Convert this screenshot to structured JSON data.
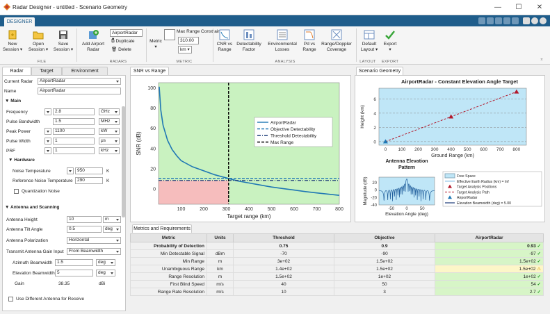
{
  "window": {
    "title": "Radar Designer - untitled - Scenario Geometry",
    "min": "—",
    "max": "☐",
    "close": "✕"
  },
  "tabs": {
    "designer": "DESIGNER"
  },
  "ribbon": {
    "file": {
      "new": "New\nSession ▾",
      "open": "Open\nSession ▾",
      "save": "Save\nSession ▾",
      "label": "FILE"
    },
    "radars": {
      "add": "Add Airport\nRadar",
      "selected": "AirportRadar",
      "duplicate": "Duplicate",
      "delete": "Delete",
      "label": "RADARS"
    },
    "metric": {
      "metric": "Metric\n▾",
      "max_range_label": "Max Range Constraint",
      "max_range_value": "310.00",
      "unit": "km",
      "label": "METRIC"
    },
    "analysis": {
      "cnr": "CNR vs\nRange",
      "detect": "Detectability\nFactor",
      "env": "Environmental\nLosses",
      "pd": "Pd vs\nRange",
      "rd": "Range/Doppler\nCoverage",
      "label": "ANALYSIS"
    },
    "layout": {
      "default": "Default\nLayout ▾",
      "label": "LAYOUT"
    },
    "export": {
      "export": "Export\n▾",
      "label": "EXPORT"
    }
  },
  "left": {
    "tabs": [
      "Radar",
      "Target",
      "Environment"
    ],
    "current_radar_label": "Current Radar",
    "current_radar": "AirportRadar",
    "name_label": "Name",
    "name": "AirportRadar",
    "main_label": "▼ Main",
    "main": [
      {
        "label": "Frequency",
        "value": "2.8",
        "unit": "GHz"
      },
      {
        "label": "Pulse Bandwidth",
        "value": "1.5",
        "unit": "MHz"
      },
      {
        "label": "Peak Power",
        "value": "1100",
        "unit": "kW"
      },
      {
        "label": "Pulse Width",
        "value": "1",
        "unit": "μs"
      },
      {
        "label": "PRF",
        "value": "1",
        "unit": "kHz"
      }
    ],
    "hardware_label": "▼ Hardware",
    "noise_temp_label": "Noise Temperature",
    "noise_temp": "950",
    "noise_temp_unit": "K",
    "ref_noise_label": "Reference Noise Temperature",
    "ref_noise": "290",
    "ref_noise_unit": "K",
    "quant_noise": "Quantization Noise",
    "antenna_label": "▼ Antenna and Scanning",
    "antenna": [
      {
        "label": "Antenna Height",
        "value": "10",
        "unit": "m"
      },
      {
        "label": "Antenna Tilt Angle",
        "value": "0.5",
        "unit": "deg"
      },
      {
        "label": "Antenna Polarization",
        "value": "Horizontal",
        "unit": ""
      },
      {
        "label": "Transmit Antenna Gain Input",
        "value": "From Beamwidth",
        "unit": ""
      },
      {
        "label": "Azimuth Beamwidth",
        "value": "1.5",
        "unit": "deg"
      },
      {
        "label": "Elevation Beamwidth",
        "value": "5",
        "unit": "deg"
      }
    ],
    "gain_label": "Gain",
    "gain": "38.35",
    "gain_unit": "dBi",
    "diff_antenna": "Use Different Antenna for Receive"
  },
  "snr": {
    "tab": "SNR vs Range"
  },
  "geometry_tab": "Scenario Geometry",
  "chart_data": [
    {
      "type": "line",
      "ylabel": "SNR (dB)",
      "xlabel": "Target range (km)",
      "xlim": [
        0,
        800
      ],
      "ylim": [
        -15,
        105
      ],
      "xticks": [
        100,
        200,
        300,
        400,
        500,
        600,
        700,
        800
      ],
      "yticks": [
        0,
        20,
        40,
        60,
        80,
        100
      ],
      "legend_position": "right",
      "series": [
        {
          "name": "AirportRadar",
          "color": "#1f77b4",
          "style": "solid",
          "x": [
            3,
            10,
            20,
            40,
            60,
            80,
            100,
            150,
            200,
            250,
            300,
            350,
            400,
            450,
            500,
            550,
            600,
            650,
            700,
            750,
            800
          ],
          "y": [
            101,
            78,
            63,
            48,
            39,
            33,
            28,
            22,
            18,
            14,
            11,
            8,
            6,
            4,
            2,
            0.5,
            -1,
            -2.5,
            -3.8,
            -5,
            -6.2
          ]
        },
        {
          "name": "Objective Detectability",
          "color": "#1f77b4",
          "style": "dashed",
          "y_const": 10.5
        },
        {
          "name": "Threshold Detectability",
          "color": "#1f3d7a",
          "style": "dashdot",
          "y_const": 8.5
        },
        {
          "name": "Max Range",
          "color": "#000000",
          "style": "dashed",
          "x_const": 310
        }
      ]
    },
    {
      "type": "scatter",
      "title": "AirportRadar - Constant Elevation Angle Target",
      "ylabel": "Height (km)",
      "xlabel": "Ground Range (km)",
      "xlim": [
        -40,
        860
      ],
      "ylim": [
        -0.5,
        7.5
      ],
      "xticks": [
        0,
        100,
        200,
        300,
        400,
        500,
        600,
        700,
        800
      ],
      "yticks": [
        0,
        2,
        4,
        6
      ],
      "series": [
        {
          "name": "AirportRadar",
          "color": "#1f77b4",
          "x": [
            0
          ],
          "y": [
            0
          ]
        },
        {
          "name": "Target Analysis Positions",
          "color": "#b2182b",
          "x": [
            400,
            800
          ],
          "y": [
            3.5,
            7.0
          ]
        },
        {
          "name": "Target Analysis Path",
          "color": "#b2182b",
          "style": "dashed",
          "x": [
            0,
            800
          ],
          "y": [
            0,
            7.0
          ]
        }
      ]
    },
    {
      "type": "line",
      "title": "Antenna Elevation Pattern",
      "ylabel": "Magnitude (dB)",
      "xlabel": "Elevation Angle (deg)",
      "xlim": [
        -90,
        90
      ],
      "ylim": [
        -40,
        35
      ],
      "xticks": [
        -50,
        0,
        50
      ],
      "yticks": [
        -40,
        -20,
        0,
        20
      ],
      "legend": [
        "Free Space",
        "Effective Earth Radius (km) = Inf",
        "Target Analysis Positions",
        "Target Analysis Path",
        "AirportRadar",
        "Elevation Beamwidth (deg) = 5.00"
      ]
    }
  ],
  "metrics": {
    "tab": "Metrics and Requirements",
    "headers": [
      "Metric",
      "Units",
      "Threshold",
      "Objective",
      "AirportRadar"
    ],
    "rows": [
      {
        "metric": "Probability of Detection",
        "units": "",
        "threshold": "0.75",
        "objective": "0.9",
        "value": "0.93",
        "status": "✓",
        "bold": true
      },
      {
        "metric": "Min Detectable Signal",
        "units": "dBm",
        "threshold": "-70",
        "objective": "-90",
        "value": "-97",
        "status": "✓"
      },
      {
        "metric": "Min Range",
        "units": "m",
        "threshold": "3e+02",
        "objective": "1.5e+02",
        "value": "1.5e+02",
        "status": "✓"
      },
      {
        "metric": "Unambiguous Range",
        "units": "km",
        "threshold": "1.4e+02",
        "objective": "1.5e+02",
        "value": "1.5e+02",
        "status": "⚠"
      },
      {
        "metric": "Range Resolution",
        "units": "m",
        "threshold": "1.5e+02",
        "objective": "1e+02",
        "value": "1e+02",
        "status": "✓"
      },
      {
        "metric": "First Blind Speed",
        "units": "m/s",
        "threshold": "40",
        "objective": "50",
        "value": "54",
        "status": "✓"
      },
      {
        "metric": "Range Rate Resolution",
        "units": "m/s",
        "threshold": "10",
        "objective": "3",
        "value": "2.7",
        "status": "✓"
      }
    ]
  }
}
